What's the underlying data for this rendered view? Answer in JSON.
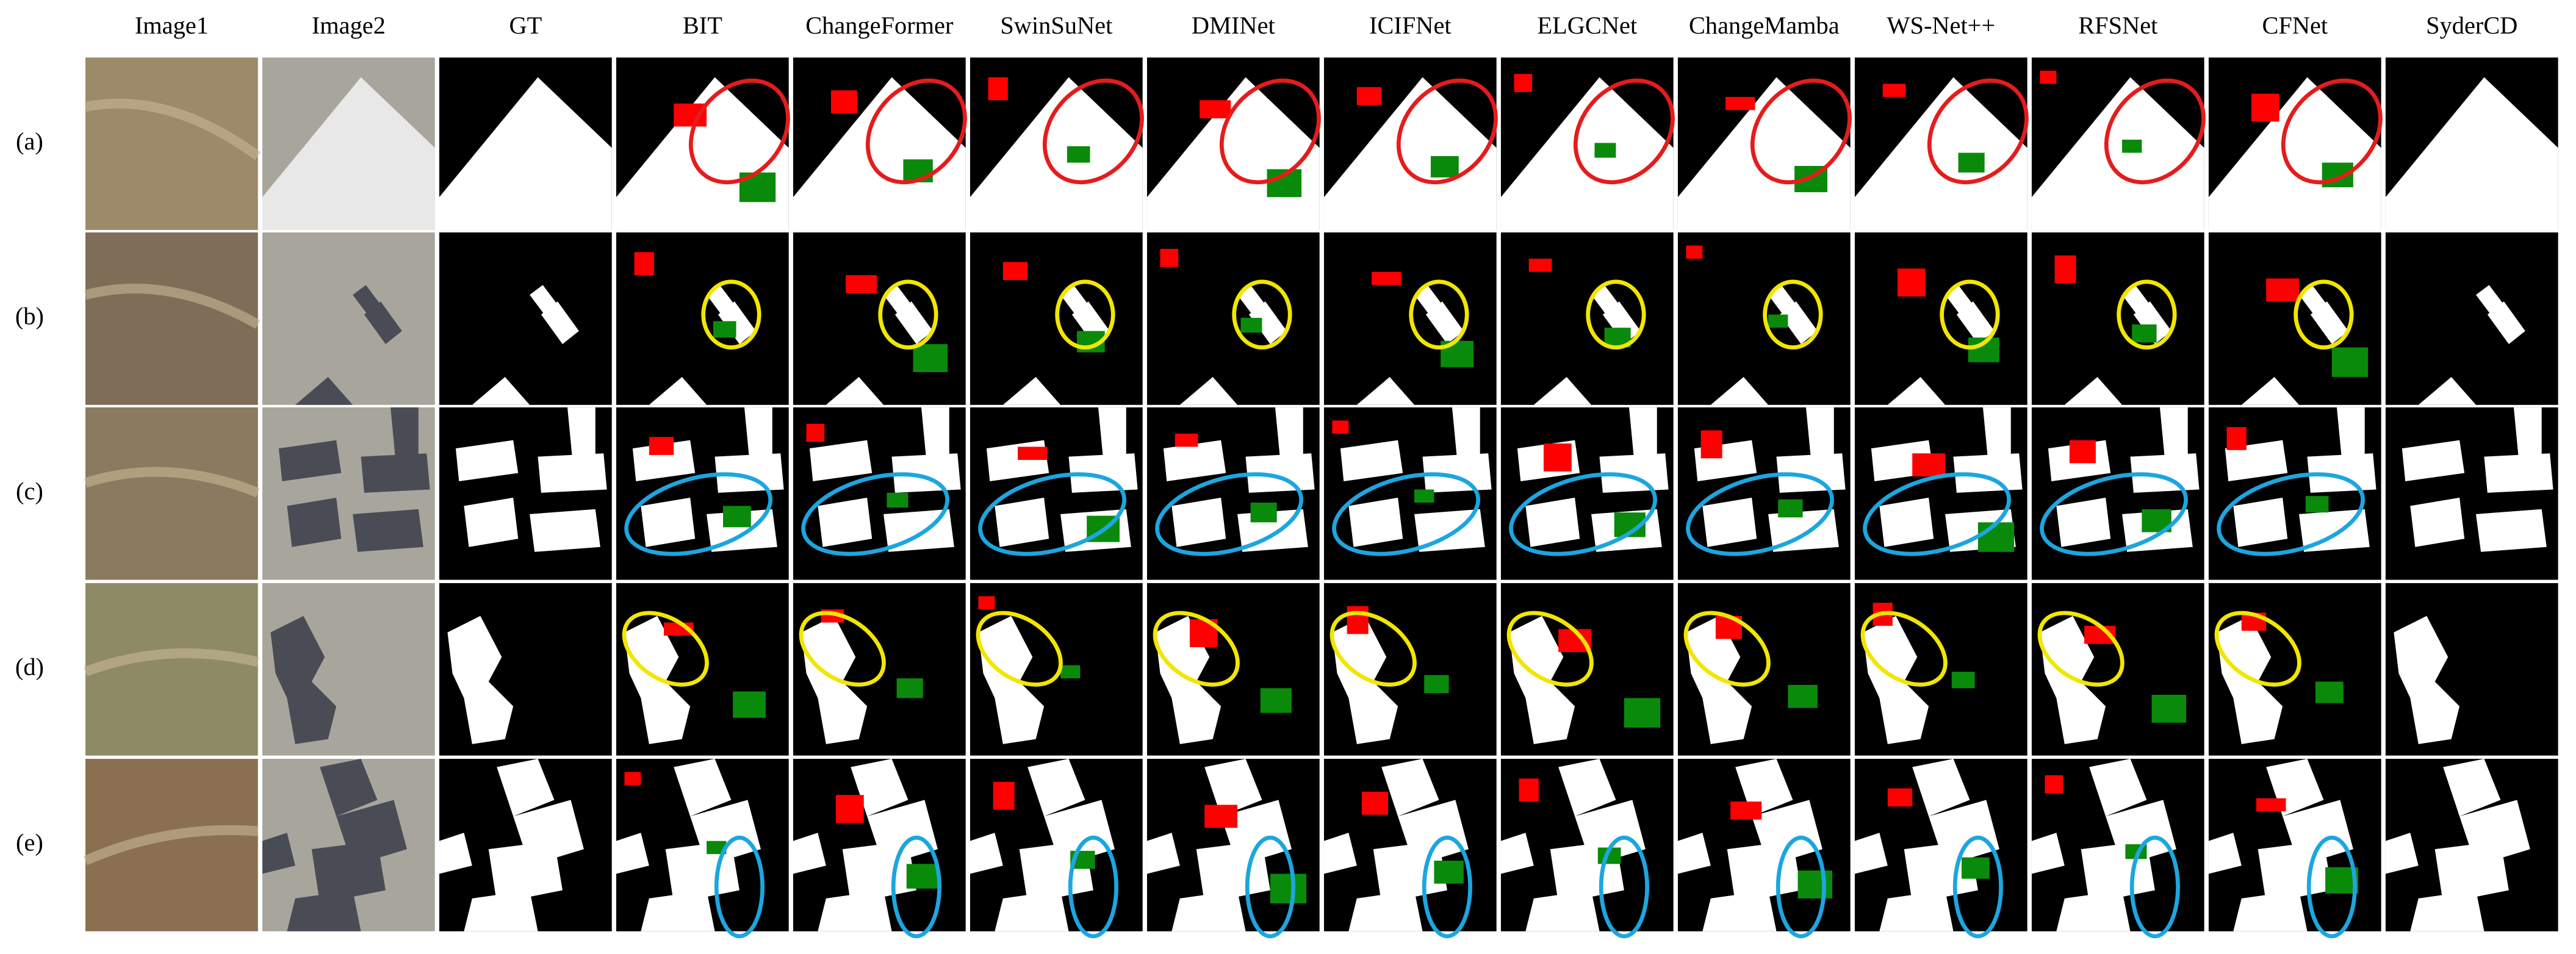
{
  "headers": [
    "Image1",
    "Image2",
    "GT",
    "BIT",
    "ChangeFormer",
    "SwinSuNet",
    "DMINet",
    "ICIFNet",
    "ELGCNet",
    "ChangeMamba",
    "WS-Net++",
    "RFSNet",
    "CFNet",
    "SyderCD"
  ],
  "row_labels": [
    "(a)",
    "(b)",
    "(c)",
    "(d)",
    "(e)"
  ]
}
